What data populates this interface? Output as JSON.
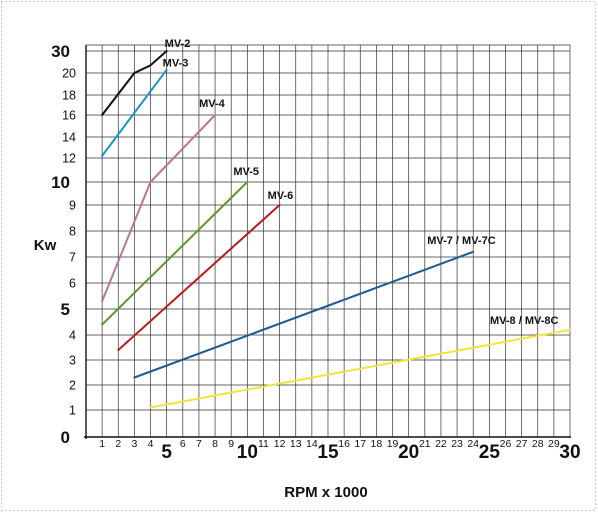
{
  "chart_data": {
    "type": "line",
    "title": "",
    "xlabel": "RPM x 1000",
    "ylabel": "Kw",
    "x_range": [
      0,
      30
    ],
    "grid": true,
    "y_tick_labels": [
      "0",
      "1",
      "2",
      "3",
      "4",
      "5",
      "6",
      "7",
      "8",
      "9",
      "10",
      "12",
      "14",
      "16",
      "18",
      "20",
      "30"
    ],
    "x_tick_labels": [
      "1",
      "2",
      "3",
      "4",
      "5",
      "6",
      "7",
      "8",
      "9",
      "10",
      "11",
      "12",
      "13",
      "14",
      "15",
      "16",
      "17",
      "18",
      "19",
      "20",
      "21",
      "22",
      "23",
      "24",
      "25",
      "26",
      "27",
      "28",
      "29",
      "30"
    ],
    "x_major_ticks": [
      "5",
      "10",
      "15",
      "20",
      "25",
      "30"
    ],
    "y_major_ticks": [
      "0",
      "5",
      "10",
      "30"
    ],
    "series": [
      {
        "name": "MV-2",
        "color": "#111111",
        "points": [
          [
            1,
            16
          ],
          [
            3,
            20
          ],
          [
            4,
            23.5
          ],
          [
            5,
            30
          ]
        ]
      },
      {
        "name": "MV-3",
        "color": "#1a95c8",
        "points": [
          [
            1,
            12.2
          ],
          [
            5,
            21.5
          ]
        ]
      },
      {
        "name": "MV-4",
        "color": "#b87595",
        "points": [
          [
            1,
            5.3
          ],
          [
            4,
            10
          ],
          [
            8,
            16
          ]
        ]
      },
      {
        "name": "MV-5",
        "color": "#5a9a2a",
        "points": [
          [
            1,
            4.4
          ],
          [
            10,
            10
          ]
        ]
      },
      {
        "name": "MV-6",
        "color": "#b81c1c",
        "points": [
          [
            2,
            3.4
          ],
          [
            12,
            9
          ]
        ]
      },
      {
        "name": "MV-7 / MV-7C",
        "color": "#1f5a91",
        "points": [
          [
            3,
            2.3
          ],
          [
            24,
            7.2
          ]
        ]
      },
      {
        "name": "MV-8 / MV-8C",
        "color": "#f2e43a",
        "points": [
          [
            4,
            1.1
          ],
          [
            30,
            4.2
          ]
        ]
      }
    ]
  }
}
